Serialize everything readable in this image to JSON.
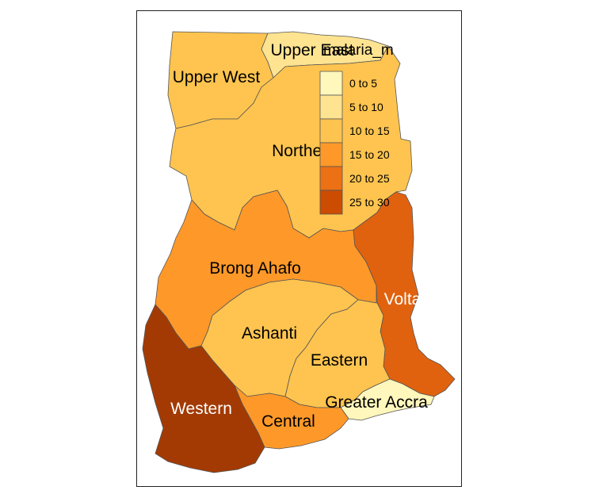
{
  "legend": {
    "title": "malaria_m",
    "items": [
      {
        "label": "0 to 5",
        "color": "#fff7bc"
      },
      {
        "label": "5 to 10",
        "color": "#fee391"
      },
      {
        "label": "10 to 15",
        "color": "#fec44f"
      },
      {
        "label": "15 to 20",
        "color": "#fe9929"
      },
      {
        "label": "20 to 25",
        "color": "#ec7014"
      },
      {
        "label": "25 to 30",
        "color": "#cc4c02"
      }
    ]
  },
  "regions": {
    "upper_west": {
      "name": "Upper West",
      "color": "#fec44f"
    },
    "upper_east": {
      "name": "Upper East",
      "color": "#fee391"
    },
    "northern": {
      "name": "Northern",
      "color": "#fec44f"
    },
    "brong_ahafo": {
      "name": "Brong Ahafo",
      "color": "#fe9929"
    },
    "volta": {
      "name": "Volta",
      "color": "#e0620f"
    },
    "ashanti": {
      "name": "Ashanti",
      "color": "#fec44f"
    },
    "eastern": {
      "name": "Eastern",
      "color": "#fec44f"
    },
    "western": {
      "name": "Western",
      "color": "#a33a03"
    },
    "central": {
      "name": "Central",
      "color": "#fe9929"
    },
    "greater_accra": {
      "name": "Greater Accra",
      "color": "#fff7bc"
    }
  }
}
